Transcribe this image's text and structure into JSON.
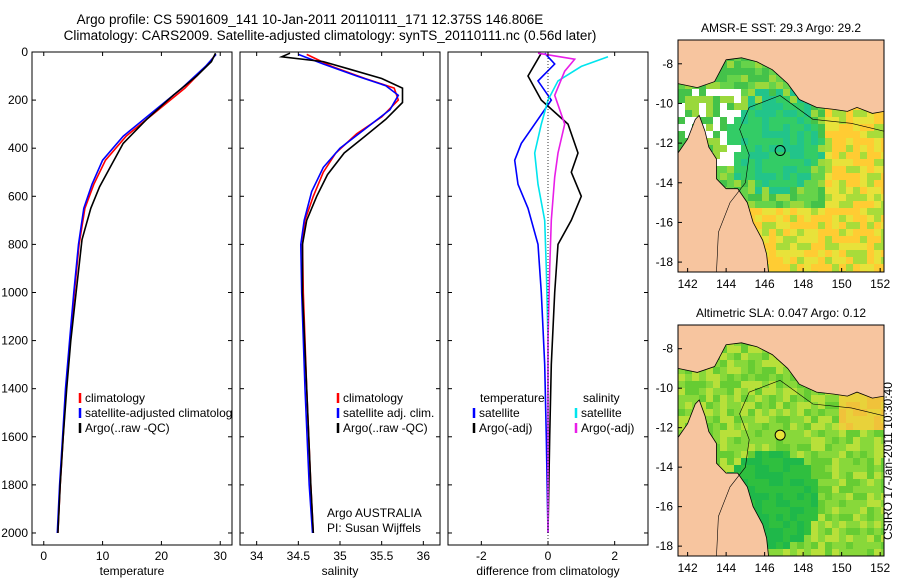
{
  "header": {
    "title_line1": "Argo profile: CS 5901609_141 10-Jan-2011 20110111_171 12.375S 146.806E",
    "title_line2": "Climatology: CARS2009. Satellite-adjusted climatology: synTS_20110111.nc (0.56d later)"
  },
  "footer_label": "CSIRO 17-Jan-2011 10:30:40",
  "colors": {
    "red": "#ff0000",
    "blue": "#0000ff",
    "black": "#000000",
    "cyan": "#00e5ee",
    "magenta": "#e81ee8",
    "land": "#f7c59f"
  },
  "chart_data": [
    {
      "type": "line",
      "id": "temperature-panel",
      "xlabel": "temperature",
      "ylabel": "",
      "xlim": [
        -2,
        32
      ],
      "ylim": [
        2050,
        0
      ],
      "xticks": [
        0,
        10,
        20,
        30
      ],
      "yticks": [
        0,
        200,
        400,
        600,
        800,
        1000,
        1200,
        1400,
        1600,
        1800,
        2000
      ],
      "legend": [
        "climatology",
        "satellite-adjusted climatolog",
        "Argo(..raw -QC)"
      ],
      "series": [
        {
          "name": "climatology",
          "color": "red",
          "points": [
            [
              29.2,
              10
            ],
            [
              28,
              50
            ],
            [
              24,
              150
            ],
            [
              19,
              250
            ],
            [
              14,
              350
            ],
            [
              10.5,
              450
            ],
            [
              8.5,
              550
            ],
            [
              7,
              650
            ],
            [
              6,
              800
            ],
            [
              5.2,
              1000
            ],
            [
              4.5,
              1200
            ],
            [
              3.8,
              1400
            ],
            [
              3.3,
              1600
            ],
            [
              2.8,
              1800
            ],
            [
              2.4,
              2000
            ]
          ]
        },
        {
          "name": "satellite-adjusted climatolog",
          "color": "blue",
          "points": [
            [
              29.3,
              10
            ],
            [
              27.5,
              60
            ],
            [
              23.5,
              150
            ],
            [
              18.5,
              250
            ],
            [
              13.5,
              350
            ],
            [
              10,
              450
            ],
            [
              8.2,
              550
            ],
            [
              6.8,
              650
            ],
            [
              5.9,
              800
            ],
            [
              5.1,
              1000
            ],
            [
              4.4,
              1200
            ],
            [
              3.7,
              1400
            ],
            [
              3.2,
              1600
            ],
            [
              2.7,
              1800
            ],
            [
              2.3,
              2000
            ]
          ]
        },
        {
          "name": "Argo(..raw -QC)",
          "color": "black",
          "points": [
            [
              29.2,
              5
            ],
            [
              28.5,
              40
            ],
            [
              26,
              100
            ],
            [
              22,
              180
            ],
            [
              17.5,
              280
            ],
            [
              13.5,
              380
            ],
            [
              11.5,
              470
            ],
            [
              9.5,
              560
            ],
            [
              8,
              650
            ],
            [
              6.5,
              780
            ],
            [
              5.5,
              1000
            ],
            [
              4.6,
              1200
            ],
            [
              3.9,
              1400
            ],
            [
              3.3,
              1600
            ],
            [
              2.8,
              1800
            ],
            [
              2.4,
              2000
            ]
          ]
        }
      ]
    },
    {
      "type": "line",
      "id": "salinity-panel",
      "xlabel": "salinity",
      "ylabel": "",
      "xlim": [
        33.8,
        36.2
      ],
      "ylim": [
        2050,
        0
      ],
      "xticks": [
        34,
        34.5,
        35,
        35.5,
        36
      ],
      "yticks": [
        0,
        200,
        400,
        600,
        800,
        1000,
        1200,
        1400,
        1600,
        1800,
        2000
      ],
      "legend": [
        "climatology",
        "satellite adj. clim.",
        "Argo(..raw -QC)"
      ],
      "note_line1": "Argo AUSTRALIA",
      "note_line2": "PI: Susan Wijffels",
      "series": [
        {
          "name": "climatology",
          "color": "red",
          "points": [
            [
              34.6,
              10
            ],
            [
              34.9,
              60
            ],
            [
              35.3,
              110
            ],
            [
              35.65,
              150
            ],
            [
              35.7,
              200
            ],
            [
              35.5,
              270
            ],
            [
              35.2,
              340
            ],
            [
              34.95,
              420
            ],
            [
              34.8,
              500
            ],
            [
              34.68,
              600
            ],
            [
              34.58,
              700
            ],
            [
              34.55,
              800
            ],
            [
              34.56,
              1000
            ],
            [
              34.6,
              1400
            ],
            [
              34.65,
              1800
            ],
            [
              34.68,
              2000
            ]
          ]
        },
        {
          "name": "satellite adj. clim.",
          "color": "blue",
          "points": [
            [
              34.5,
              10
            ],
            [
              34.8,
              50
            ],
            [
              35.2,
              100
            ],
            [
              35.55,
              140
            ],
            [
              35.7,
              180
            ],
            [
              35.6,
              240
            ],
            [
              35.3,
              320
            ],
            [
              35.0,
              400
            ],
            [
              34.8,
              480
            ],
            [
              34.66,
              580
            ],
            [
              34.57,
              700
            ],
            [
              34.53,
              800
            ],
            [
              34.54,
              1000
            ],
            [
              34.58,
              1400
            ],
            [
              34.63,
              1800
            ],
            [
              34.67,
              2000
            ]
          ]
        },
        {
          "name": "Argo(..raw -QC)",
          "color": "black",
          "points": [
            [
              34.4,
              5
            ],
            [
              34.3,
              20
            ],
            [
              34.8,
              40
            ],
            [
              35.1,
              70
            ],
            [
              35.5,
              110
            ],
            [
              35.75,
              150
            ],
            [
              35.75,
              210
            ],
            [
              35.55,
              280
            ],
            [
              35.3,
              350
            ],
            [
              35.05,
              420
            ],
            [
              34.85,
              510
            ],
            [
              34.72,
              600
            ],
            [
              34.6,
              700
            ],
            [
              34.55,
              800
            ],
            [
              34.55,
              1000
            ],
            [
              34.6,
              1400
            ],
            [
              34.65,
              1800
            ],
            [
              34.68,
              2000
            ]
          ]
        }
      ]
    },
    {
      "type": "line",
      "id": "difference-panel",
      "xlabel": "difference from climatology",
      "ylabel": "",
      "xlim": [
        -3,
        3
      ],
      "ylim": [
        2050,
        0
      ],
      "xticks": [
        -2,
        0,
        2
      ],
      "yticks": [
        0,
        200,
        400,
        600,
        800,
        1000,
        1200,
        1400,
        1600,
        1800,
        2000
      ],
      "legend_temp_header": "temperature",
      "legend_sal_header": "salinity",
      "legend": [
        "satellite",
        "Argo(-adj)",
        "satellite",
        "Argo(-adj)"
      ],
      "series": [
        {
          "name": "temperature satellite",
          "color": "blue",
          "points": [
            [
              -0.1,
              5
            ],
            [
              0.2,
              50
            ],
            [
              -0.3,
              120
            ],
            [
              0.1,
              200
            ],
            [
              -0.4,
              300
            ],
            [
              -0.8,
              380
            ],
            [
              -1.0,
              450
            ],
            [
              -0.9,
              550
            ],
            [
              -0.6,
              650
            ],
            [
              -0.3,
              800
            ],
            [
              -0.2,
              1000
            ],
            [
              -0.1,
              1300
            ],
            [
              -0.05,
              1600
            ],
            [
              0,
              2000
            ]
          ]
        },
        {
          "name": "temperature Argo(-adj)",
          "color": "black",
          "points": [
            [
              -0.2,
              5
            ],
            [
              -0.6,
              100
            ],
            [
              -0.2,
              200
            ],
            [
              0.6,
              300
            ],
            [
              0.9,
              420
            ],
            [
              0.7,
              500
            ],
            [
              1.0,
              600
            ],
            [
              0.7,
              700
            ],
            [
              0.3,
              800
            ],
            [
              0.2,
              1000
            ],
            [
              0.1,
              1300
            ],
            [
              0.05,
              1600
            ],
            [
              0,
              2000
            ]
          ]
        },
        {
          "name": "salinity satellite",
          "color": "cyan",
          "points": [
            [
              1.8,
              20
            ],
            [
              1.0,
              60
            ],
            [
              0.3,
              120
            ],
            [
              0.0,
              200
            ],
            [
              -0.2,
              300
            ],
            [
              -0.4,
              420
            ],
            [
              -0.3,
              550
            ],
            [
              -0.1,
              700
            ],
            [
              -0.05,
              900
            ],
            [
              0,
              1200
            ],
            [
              0,
              2000
            ]
          ]
        },
        {
          "name": "salinity Argo(-adj)",
          "color": "magenta",
          "points": [
            [
              -0.3,
              5
            ],
            [
              0.8,
              30
            ],
            [
              0.5,
              80
            ],
            [
              0.2,
              180
            ],
            [
              0.5,
              300
            ],
            [
              0.3,
              420
            ],
            [
              0.2,
              520
            ],
            [
              0.1,
              700
            ],
            [
              0.05,
              900
            ],
            [
              0,
              1200
            ],
            [
              0,
              2000
            ]
          ]
        }
      ]
    },
    {
      "type": "heatmap",
      "id": "sst-map",
      "title": "AMSR-E SST: 29.3 Argo: 29.2",
      "xlim": [
        141.5,
        152.2
      ],
      "ylim": [
        -18.5,
        -6.8
      ],
      "xticks": [
        142,
        144,
        146,
        148,
        150,
        152
      ],
      "yticks": [
        -8,
        -10,
        -12,
        -14,
        -16,
        -18
      ],
      "marker": [
        146.806,
        -12.375
      ]
    },
    {
      "type": "heatmap",
      "id": "sla-map",
      "title": "Altimetric SLA: 0.047 Argo: 0.12",
      "xlim": [
        141.5,
        152.2
      ],
      "ylim": [
        -18.5,
        -6.8
      ],
      "xticks": [
        142,
        144,
        146,
        148,
        150,
        152
      ],
      "yticks": [
        -8,
        -10,
        -12,
        -14,
        -16,
        -18
      ],
      "marker": [
        146.806,
        -12.375
      ]
    }
  ]
}
